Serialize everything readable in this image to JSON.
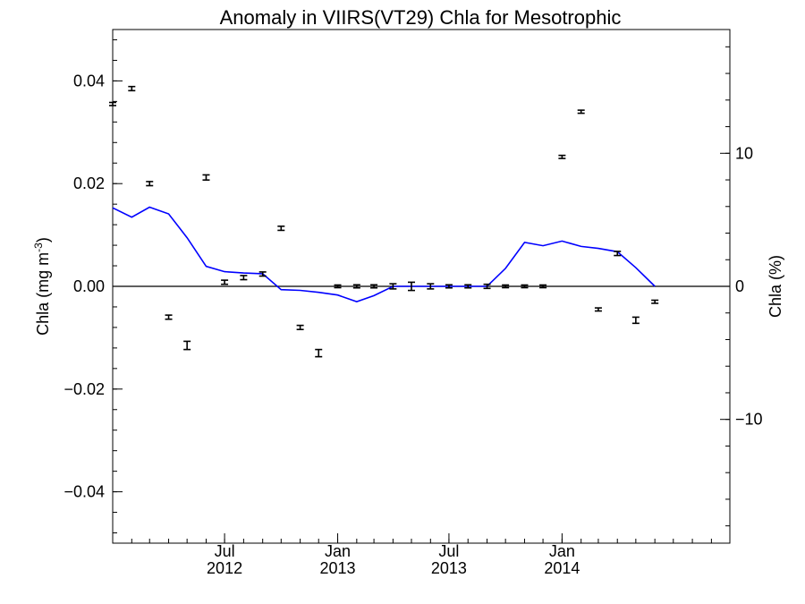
{
  "chart_data": {
    "type": "scatter",
    "title": "Anomaly in VIIRS(VT29) Chla for Mesotrophic",
    "ylabel_left": "Chla (mg m",
    "ylabel_left_sup": "-3",
    "ylabel_left_close": ")",
    "ylabel_right": "Chla (%)",
    "x_range": [
      "2012-01-01",
      "2014-10-01"
    ],
    "ylim_left": [
      -0.05,
      0.05
    ],
    "ylim_right": [
      -19.3,
      19.3
    ],
    "left_ticks": [
      {
        "value": 0.04,
        "label": "0.04"
      },
      {
        "value": 0.02,
        "label": "0.02"
      },
      {
        "value": 0.0,
        "label": "0.00"
      },
      {
        "value": -0.02,
        "label": "−0.02"
      },
      {
        "value": -0.04,
        "label": "−0.04"
      }
    ],
    "right_ticks": [
      {
        "value": 10,
        "label": "10"
      },
      {
        "value": 0,
        "label": "0"
      },
      {
        "value": -10,
        "label": "−10"
      }
    ],
    "x_ticks": [
      {
        "date": "2012-07-01",
        "label": "Jul",
        "year": "2012"
      },
      {
        "date": "2013-01-01",
        "label": "Jan",
        "year": "2013"
      },
      {
        "date": "2013-07-01",
        "label": "Jul",
        "year": "2013"
      },
      {
        "date": "2014-01-01",
        "label": "Jan",
        "year": "2014"
      }
    ],
    "zero_line": 0,
    "anomaly_series": {
      "axis": "left",
      "color": "#000000",
      "points": [
        {
          "date": "2012-01-01",
          "y": 0.0355,
          "err": 0.0003
        },
        {
          "date": "2012-02-01",
          "y": 0.0385,
          "err": 0.0004
        },
        {
          "date": "2012-03-01",
          "y": 0.02,
          "err": 0.0004
        },
        {
          "date": "2012-04-01",
          "y": -0.006,
          "err": 0.0004
        },
        {
          "date": "2012-05-01",
          "y": -0.0115,
          "err": 0.0008
        },
        {
          "date": "2012-06-01",
          "y": 0.0212,
          "err": 0.0005
        },
        {
          "date": "2012-07-01",
          "y": 0.0008,
          "err": 0.0004
        },
        {
          "date": "2012-08-01",
          "y": 0.0017,
          "err": 0.0004
        },
        {
          "date": "2012-09-01",
          "y": 0.0024,
          "err": 0.0004
        },
        {
          "date": "2012-10-01",
          "y": 0.0113,
          "err": 0.0004
        },
        {
          "date": "2012-11-01",
          "y": -0.008,
          "err": 0.0004
        },
        {
          "date": "2012-12-01",
          "y": -0.013,
          "err": 0.0007
        },
        {
          "date": "2013-01-01",
          "y": 0.0,
          "err": 0.0002
        },
        {
          "date": "2013-02-01",
          "y": 0.0,
          "err": 0.0003
        },
        {
          "date": "2013-03-01",
          "y": 0.0,
          "err": 0.0003
        },
        {
          "date": "2013-04-01",
          "y": 0.0,
          "err": 0.0005
        },
        {
          "date": "2013-05-01",
          "y": 0.0,
          "err": 0.0008
        },
        {
          "date": "2013-06-01",
          "y": 0.0,
          "err": 0.0005
        },
        {
          "date": "2013-07-01",
          "y": 0.0,
          "err": 0.0003
        },
        {
          "date": "2013-08-01",
          "y": 0.0,
          "err": 0.0003
        },
        {
          "date": "2013-09-01",
          "y": 0.0,
          "err": 0.0004
        },
        {
          "date": "2013-10-01",
          "y": 0.0,
          "err": 0.0002
        },
        {
          "date": "2013-11-01",
          "y": 0.0,
          "err": 0.0002
        },
        {
          "date": "2013-12-01",
          "y": 0.0,
          "err": 0.0002
        },
        {
          "date": "2014-01-01",
          "y": 0.0252,
          "err": 0.0003
        },
        {
          "date": "2014-02-01",
          "y": 0.034,
          "err": 0.0003
        },
        {
          "date": "2014-03-01",
          "y": -0.0045,
          "err": 0.0003
        },
        {
          "date": "2014-04-01",
          "y": 0.0064,
          "err": 0.0004
        },
        {
          "date": "2014-05-01",
          "y": -0.0066,
          "err": 0.0006
        },
        {
          "date": "2014-06-01",
          "y": -0.003,
          "err": 0.0003
        }
      ]
    },
    "percent_series": {
      "axis": "right",
      "color": "#0000ff",
      "points": [
        {
          "date": "2012-01-01",
          "y": 5.9
        },
        {
          "date": "2012-02-01",
          "y": 5.2
        },
        {
          "date": "2012-03-01",
          "y": 5.95
        },
        {
          "date": "2012-04-01",
          "y": 5.45
        },
        {
          "date": "2012-05-01",
          "y": 3.65
        },
        {
          "date": "2012-06-01",
          "y": 1.5
        },
        {
          "date": "2012-07-01",
          "y": 1.1
        },
        {
          "date": "2012-08-01",
          "y": 1.0
        },
        {
          "date": "2012-09-01",
          "y": 0.95
        },
        {
          "date": "2012-10-01",
          "y": -0.25
        },
        {
          "date": "2012-11-01",
          "y": -0.3
        },
        {
          "date": "2012-12-01",
          "y": -0.45
        },
        {
          "date": "2013-01-01",
          "y": -0.65
        },
        {
          "date": "2013-02-01",
          "y": -1.15
        },
        {
          "date": "2013-03-01",
          "y": -0.7
        },
        {
          "date": "2013-04-01",
          "y": 0.0
        },
        {
          "date": "2013-05-01",
          "y": 0.0
        },
        {
          "date": "2013-06-01",
          "y": 0.0
        },
        {
          "date": "2013-07-01",
          "y": 0.0
        },
        {
          "date": "2013-08-01",
          "y": 0.0
        },
        {
          "date": "2013-09-01",
          "y": 0.0
        },
        {
          "date": "2013-10-01",
          "y": 1.35
        },
        {
          "date": "2013-11-01",
          "y": 3.3
        },
        {
          "date": "2013-12-01",
          "y": 3.05
        },
        {
          "date": "2014-01-01",
          "y": 3.4
        },
        {
          "date": "2014-02-01",
          "y": 3.0
        },
        {
          "date": "2014-03-01",
          "y": 2.85
        },
        {
          "date": "2014-04-01",
          "y": 2.6
        },
        {
          "date": "2014-05-01",
          "y": 1.4
        },
        {
          "date": "2014-06-01",
          "y": 0.0
        }
      ]
    },
    "grid": false,
    "legend": "none"
  }
}
